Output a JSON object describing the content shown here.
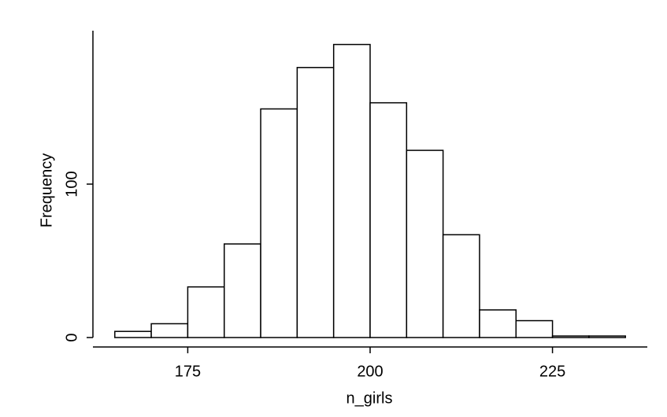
{
  "chart_data": {
    "type": "histogram",
    "xlabel": "n_girls",
    "ylabel": "Frequency",
    "bins": [
      165,
      170,
      175,
      180,
      185,
      190,
      195,
      200,
      205,
      210,
      215,
      220,
      225,
      230,
      235
    ],
    "values": [
      4,
      9,
      33,
      61,
      149,
      176,
      191,
      153,
      122,
      67,
      18,
      11,
      1,
      1
    ],
    "color": "#ffffff",
    "edgecolor": "#000000",
    "xlim": [
      162,
      238
    ],
    "ylim": [
      0,
      200
    ],
    "xticks": [
      175,
      200,
      225
    ],
    "yticks": [
      0,
      100
    ]
  }
}
